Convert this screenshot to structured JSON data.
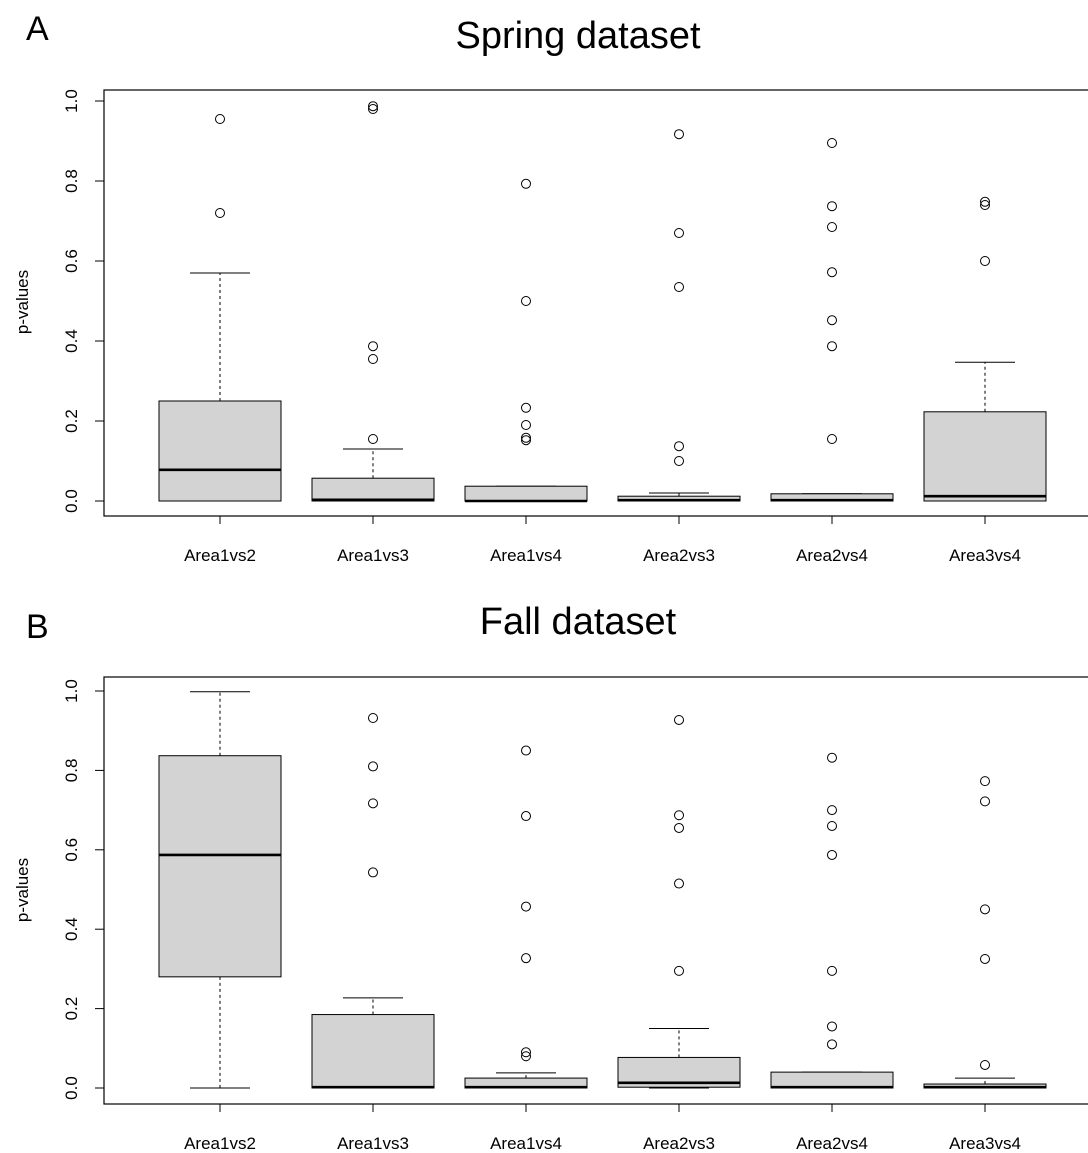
{
  "chart_data": [
    {
      "type": "box",
      "panel_label": "A",
      "title": "Spring dataset",
      "ylabel": "p-values",
      "xlabel": "",
      "ylim": [
        0.0,
        1.0
      ],
      "yticks": [
        "0.0",
        "0.2",
        "0.4",
        "0.6",
        "0.8",
        "1.0"
      ],
      "grid": false,
      "box_color": "#d3d3d3",
      "categories": [
        "Area1vs2",
        "Area1vs3",
        "Area1vs4",
        "Area2vs3",
        "Area2vs4",
        "Area3vs4"
      ],
      "boxes": [
        {
          "whisker_low": 0.0,
          "q1": 0.0,
          "median": 0.078,
          "q3": 0.25,
          "whisker_high": 0.57,
          "outliers": [
            0.72,
            0.955
          ]
        },
        {
          "whisker_low": 0.0,
          "q1": 0.0,
          "median": 0.003,
          "q3": 0.057,
          "whisker_high": 0.13,
          "outliers": [
            0.155,
            0.355,
            0.387,
            0.98,
            0.987
          ]
        },
        {
          "whisker_low": 0.0,
          "q1": 0.0,
          "median": 0.0,
          "q3": 0.037,
          "whisker_high": 0.037,
          "outliers": [
            0.152,
            0.158,
            0.19,
            0.233,
            0.5,
            0.793
          ]
        },
        {
          "whisker_low": 0.0,
          "q1": 0.0,
          "median": 0.002,
          "q3": 0.012,
          "whisker_high": 0.02,
          "outliers": [
            0.1,
            0.137,
            0.535,
            0.67,
            0.917
          ]
        },
        {
          "whisker_low": 0.0,
          "q1": 0.0,
          "median": 0.002,
          "q3": 0.018,
          "whisker_high": 0.018,
          "outliers": [
            0.155,
            0.387,
            0.452,
            0.572,
            0.685,
            0.737,
            0.895
          ]
        },
        {
          "whisker_low": 0.0,
          "q1": 0.0,
          "median": 0.012,
          "q3": 0.223,
          "whisker_high": 0.347,
          "outliers": [
            0.6,
            0.74,
            0.748
          ]
        }
      ]
    },
    {
      "type": "box",
      "panel_label": "B",
      "title": "Fall dataset",
      "ylabel": "p-values",
      "xlabel": "",
      "ylim": [
        0.0,
        1.0
      ],
      "yticks": [
        "0.0",
        "0.2",
        "0.4",
        "0.6",
        "0.8",
        "1.0"
      ],
      "grid": false,
      "box_color": "#d3d3d3",
      "categories": [
        "Area1vs2",
        "Area1vs3",
        "Area1vs4",
        "Area2vs3",
        "Area2vs4",
        "Area3vs4"
      ],
      "boxes": [
        {
          "whisker_low": 0.0,
          "q1": 0.28,
          "median": 0.587,
          "q3": 0.837,
          "whisker_high": 0.998,
          "outliers": []
        },
        {
          "whisker_low": 0.0,
          "q1": 0.0,
          "median": 0.002,
          "q3": 0.185,
          "whisker_high": 0.227,
          "outliers": [
            0.543,
            0.717,
            0.81,
            0.932
          ]
        },
        {
          "whisker_low": 0.0,
          "q1": 0.0,
          "median": 0.002,
          "q3": 0.025,
          "whisker_high": 0.038,
          "outliers": [
            0.08,
            0.09,
            0.327,
            0.457,
            0.685,
            0.85
          ]
        },
        {
          "whisker_low": 0.0,
          "q1": 0.002,
          "median": 0.013,
          "q3": 0.077,
          "whisker_high": 0.15,
          "outliers": [
            0.295,
            0.515,
            0.655,
            0.687,
            0.927
          ]
        },
        {
          "whisker_low": 0.0,
          "q1": 0.0,
          "median": 0.002,
          "q3": 0.04,
          "whisker_high": 0.04,
          "outliers": [
            0.11,
            0.155,
            0.295,
            0.587,
            0.66,
            0.7,
            0.832
          ]
        },
        {
          "whisker_low": 0.0,
          "q1": 0.0,
          "median": 0.002,
          "q3": 0.01,
          "whisker_high": 0.025,
          "outliers": [
            0.058,
            0.325,
            0.45,
            0.722,
            0.773
          ]
        }
      ]
    }
  ]
}
